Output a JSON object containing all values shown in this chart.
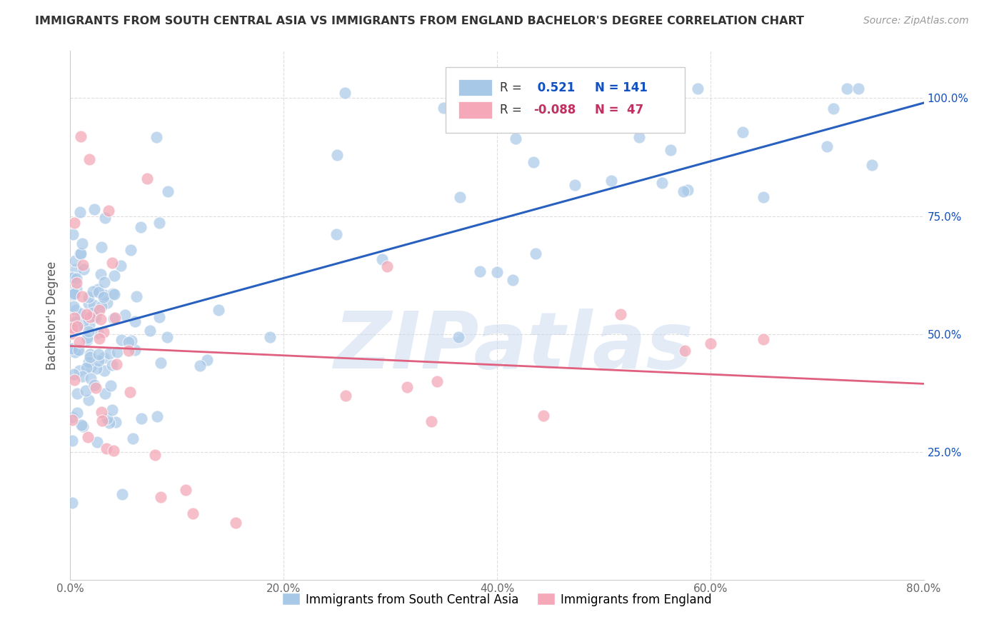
{
  "title": "IMMIGRANTS FROM SOUTH CENTRAL ASIA VS IMMIGRANTS FROM ENGLAND BACHELOR'S DEGREE CORRELATION CHART",
  "source": "Source: ZipAtlas.com",
  "ylabel": "Bachelor's Degree",
  "watermark": "ZIPatlas",
  "blue_color": "#A8C8E8",
  "pink_color": "#F4A8B8",
  "blue_line_color": "#2860C0",
  "pink_line_color": "#E06080",
  "r_val_blue_color": "#1050C0",
  "r_val_pink_color": "#C03060",
  "n_val_color": "#1050C0",
  "background_color": "#FFFFFF",
  "grid_color": "#DDDDDD",
  "title_color": "#333333",
  "legend_label_blue": "Immigrants from South Central Asia",
  "legend_label_pink": "Immigrants from England",
  "xlim": [
    0.0,
    0.8
  ],
  "ylim": [
    -0.02,
    1.1
  ],
  "ytick_vals": [
    0.25,
    0.5,
    0.75,
    1.0
  ],
  "xtick_vals": [
    0.0,
    0.2,
    0.4,
    0.6,
    0.8
  ],
  "blue_line_x0": 0.0,
  "blue_line_y0": 0.495,
  "blue_line_x1": 0.8,
  "blue_line_y1": 0.99,
  "pink_line_x0": 0.0,
  "pink_line_y0": 0.475,
  "pink_line_x1": 0.8,
  "pink_line_y1": 0.395
}
